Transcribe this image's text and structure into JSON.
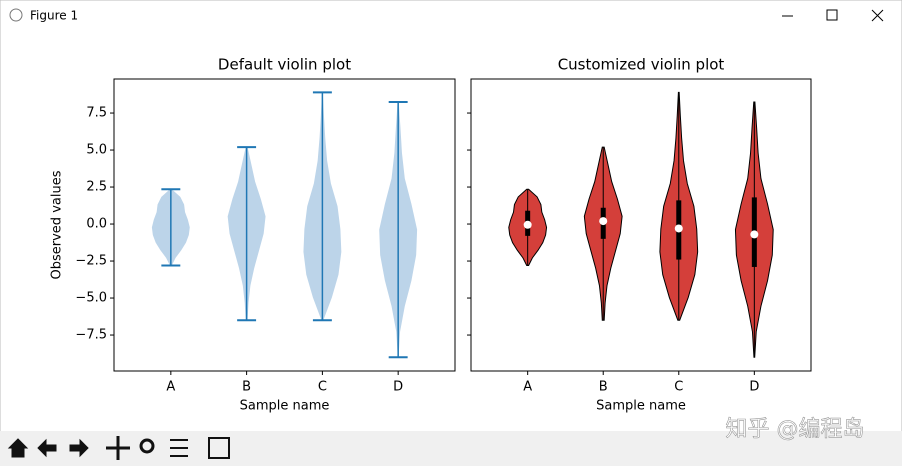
{
  "window": {
    "title": "Figure 1"
  },
  "watermark": "知乎 @编程岛",
  "chart_data": [
    {
      "type": "violin",
      "title": "Default violin plot",
      "xlabel": "Sample name",
      "ylabel": "Observed values",
      "categories": [
        "A",
        "B",
        "C",
        "D"
      ],
      "xlim": [
        0.25,
        4.75
      ],
      "ylim": [
        -9.93,
        9.8
      ],
      "yticks": [
        {
          "value": -7.5,
          "label": "−7.5"
        },
        {
          "value": -5,
          "label": "−5.0"
        },
        {
          "value": -2.5,
          "label": "−2.5"
        },
        {
          "value": 0,
          "label": "0.0"
        },
        {
          "value": 2.5,
          "label": "2.5"
        },
        {
          "value": 5,
          "label": "5.0"
        },
        {
          "value": 7.5,
          "label": "7.5"
        }
      ],
      "fill": "#bcd4e9",
      "edge": "#1f77b4",
      "show_extrema": true,
      "show_ytick_labels": true,
      "violins": [
        {
          "min": -2.8,
          "max": 2.35,
          "density": [
            0.05,
            0.25,
            0.55,
            0.8,
            0.95,
            1.0,
            0.9,
            0.75,
            0.7,
            0.5,
            0.05
          ]
        },
        {
          "min": -6.5,
          "max": 5.2,
          "density": [
            0.05,
            0.1,
            0.2,
            0.4,
            0.65,
            0.9,
            1.0,
            0.75,
            0.45,
            0.25,
            0.05
          ]
        },
        {
          "min": -6.5,
          "max": 8.9,
          "density": [
            0.05,
            0.5,
            0.85,
            1.0,
            0.95,
            0.8,
            0.45,
            0.25,
            0.15,
            0.08,
            0.02
          ]
        },
        {
          "min": -9.0,
          "max": 8.25,
          "density": [
            0.02,
            0.1,
            0.35,
            0.7,
            0.95,
            1.0,
            0.7,
            0.35,
            0.2,
            0.12,
            0.03
          ]
        }
      ]
    },
    {
      "type": "violin",
      "title": "Customized violin plot",
      "xlabel": "Sample name",
      "categories": [
        "A",
        "B",
        "C",
        "D"
      ],
      "xlim": [
        0.25,
        4.75
      ],
      "ylim": [
        -9.93,
        9.8
      ],
      "yticks": [
        -7.5,
        -5,
        -2.5,
        0,
        2.5,
        5,
        7.5
      ],
      "fill": "#d43f3a",
      "edge": "#000000",
      "show_extrema": false,
      "show_ytick_labels": false,
      "violins": [
        {
          "min": -2.8,
          "max": 2.35,
          "q1": -0.8,
          "median": -0.05,
          "q3": 0.9,
          "density": [
            0.05,
            0.25,
            0.55,
            0.8,
            0.95,
            1.0,
            0.9,
            0.75,
            0.7,
            0.5,
            0.05
          ]
        },
        {
          "min": -6.5,
          "max": 5.2,
          "q1": -1.0,
          "median": 0.2,
          "q3": 1.1,
          "density": [
            0.05,
            0.1,
            0.2,
            0.4,
            0.65,
            0.9,
            1.0,
            0.75,
            0.45,
            0.25,
            0.05
          ]
        },
        {
          "min": -6.5,
          "max": 8.9,
          "q1": -2.4,
          "median": -0.3,
          "q3": 1.6,
          "density": [
            0.05,
            0.5,
            0.85,
            1.0,
            0.95,
            0.8,
            0.45,
            0.25,
            0.15,
            0.08,
            0.02
          ]
        },
        {
          "min": -9.0,
          "max": 8.25,
          "q1": -2.9,
          "median": -0.7,
          "q3": 1.8,
          "density": [
            0.02,
            0.1,
            0.35,
            0.7,
            0.95,
            1.0,
            0.7,
            0.35,
            0.2,
            0.12,
            0.03
          ]
        }
      ]
    }
  ]
}
